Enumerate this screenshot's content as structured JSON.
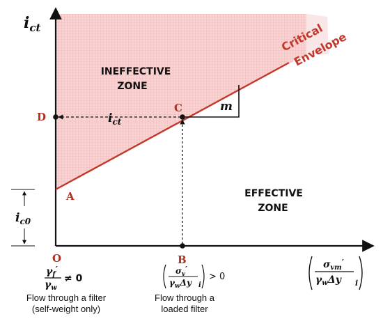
{
  "diagram": {
    "y_axis_label": {
      "main": "i",
      "sub": "ct"
    },
    "envelope_label": {
      "line1": "Critical",
      "line2": "Envelope"
    },
    "zones": {
      "ineffective": {
        "line1": "INEFFECTIVE",
        "line2": "ZONE"
      },
      "effective": {
        "line1": "EFFECTIVE",
        "line2": "ZONE"
      }
    },
    "slope_label": "m",
    "ict_label": {
      "main": "i",
      "sub": "ct"
    },
    "ic0_label": {
      "main": "i",
      "sub": "c0"
    },
    "points": {
      "A": "A",
      "B": "B",
      "C": "C",
      "D": "D",
      "O": "O"
    },
    "x_annotations": {
      "origin": {
        "num_main": "γ",
        "num_sub": "f",
        "prime": "′",
        "den_main": "γ",
        "den_sub": "w",
        "relation": "≠ 0"
      },
      "point_b": {
        "num_main": "σ",
        "num_sub": "v",
        "prime": "′",
        "den": "γ",
        "den_sub": "w",
        "den_rest": "Δy",
        "outer_sub": "i",
        "relation": "> 0"
      },
      "axis_end": {
        "num_main": "σ",
        "num_sub": "vm",
        "prime": "′",
        "den": "γ",
        "den_sub": "w",
        "den_rest": "Δy",
        "outer_sub": "i"
      }
    },
    "captions": {
      "left": {
        "line1": "Flow through a filter",
        "line2": "(self-weight only)"
      },
      "middle": {
        "line1": "Flow through  a",
        "line2": "loaded filter"
      }
    },
    "colors": {
      "envelope": "#c0392b",
      "zone_fill": "#f4c6c6",
      "point_label": "#b03020",
      "axis": "#111111"
    }
  }
}
